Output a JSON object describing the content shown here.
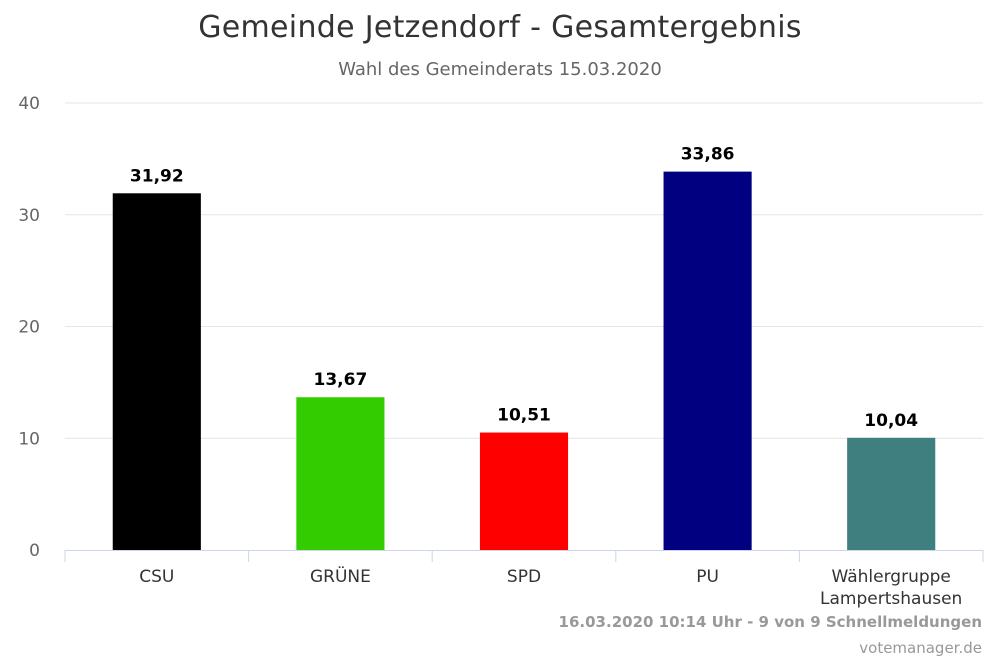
{
  "chart_data": {
    "type": "bar",
    "title": "Gemeinde Jetzendorf - Gesamtergebnis",
    "subtitle": "Wahl des Gemeinderats 15.03.2020",
    "categories": [
      "CSU",
      "GRÜNE",
      "SPD",
      "PU",
      "Wählergruppe Lampertshausen"
    ],
    "category_lines": [
      [
        "CSU"
      ],
      [
        "GRÜNE"
      ],
      [
        "SPD"
      ],
      [
        "PU"
      ],
      [
        "Wählergruppe",
        "Lampertshausen"
      ]
    ],
    "values": [
      31.92,
      13.67,
      10.51,
      33.86,
      10.04
    ],
    "value_labels": [
      "31,92",
      "13,67",
      "10,51",
      "33,86",
      "10,04"
    ],
    "colors": [
      "#000000",
      "#33cc00",
      "#ff0000",
      "#000080",
      "#407f7f"
    ],
    "yticks": [
      0,
      10,
      20,
      30,
      40
    ],
    "ylim": [
      0,
      40
    ],
    "xlabel": "",
    "ylabel": "",
    "grid": true,
    "legend": false
  },
  "footer": {
    "status": "16.03.2020 10:14 Uhr - 9 von 9 Schnellmeldungen",
    "credit": "votemanager.de"
  }
}
